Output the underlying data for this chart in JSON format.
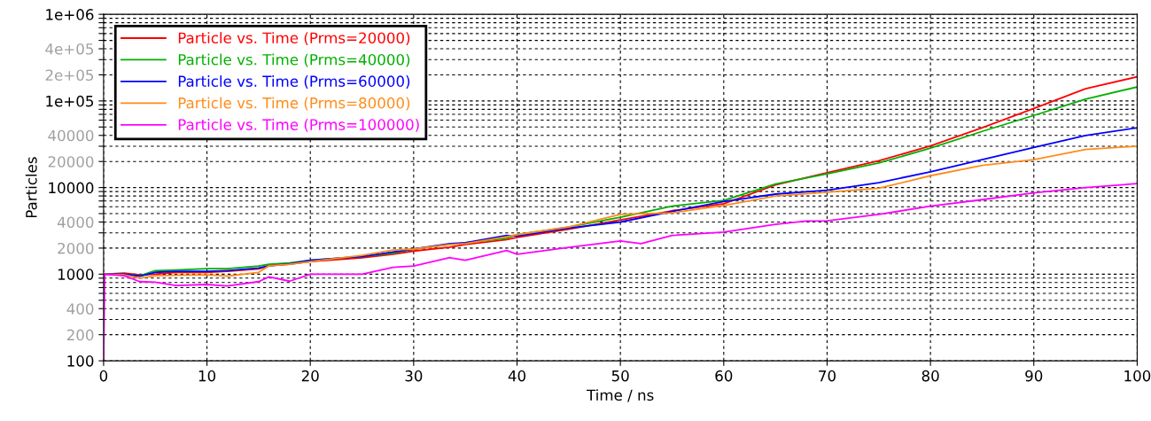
{
  "chart_data": {
    "type": "line",
    "xlabel": "Time / ns",
    "ylabel": "Particles",
    "log": "y",
    "grid": true,
    "legend": "top left",
    "line_style": "solid",
    "marker": "none",
    "xlim": [
      0,
      100
    ],
    "xticks": [
      0,
      10,
      20,
      30,
      40,
      50,
      60,
      70,
      80,
      90,
      100
    ],
    "ylim": [
      100,
      1000000
    ],
    "yticks": [
      100,
      200,
      {
        "value": 300,
        "label": null
      },
      400,
      {
        "value": 500,
        "label": null
      },
      {
        "value": 600,
        "label": null
      },
      {
        "value": 700,
        "label": null
      },
      {
        "value": 800,
        "label": null
      },
      {
        "value": 900,
        "label": null
      },
      1000,
      2000,
      {
        "value": 3000,
        "label": null
      },
      4000,
      {
        "value": 5000,
        "label": null
      },
      {
        "value": 6000,
        "label": null
      },
      {
        "value": 7000,
        "label": null
      },
      {
        "value": 8000,
        "label": null
      },
      {
        "value": 9000,
        "label": null
      },
      10000,
      20000,
      {
        "value": 30000,
        "label": null
      },
      40000,
      {
        "value": 50000,
        "label": null
      },
      {
        "value": 60000,
        "label": null
      },
      {
        "value": 70000,
        "label": null
      },
      {
        "value": 80000,
        "label": null
      },
      {
        "value": 90000,
        "label": null
      },
      {
        "value": 100000,
        "label": "1e+05"
      },
      {
        "value": 200000,
        "label": "2e+05"
      },
      {
        "value": 300000,
        "label": null
      },
      {
        "value": 400000,
        "label": "4e+05"
      },
      {
        "value": 500000,
        "label": null
      },
      {
        "value": 600000,
        "label": null
      },
      {
        "value": 700000,
        "label": null
      },
      {
        "value": 800000,
        "label": null
      },
      {
        "value": 900000,
        "label": null
      },
      {
        "value": 1000000,
        "label": "1e+06"
      }
    ],
    "x": [
      0,
      2,
      3.5,
      5,
      7,
      10,
      12,
      15,
      16,
      18,
      20,
      25,
      28,
      30,
      33.5,
      35,
      39,
      40,
      45,
      50,
      55,
      60,
      65,
      70,
      75,
      80,
      85,
      90,
      95,
      100
    ],
    "series": [
      {
        "name": "Particle vs. Time (Prms=20000)",
        "color": "#ff0000",
        "values": [
          1000,
          1030,
          980,
          1000,
          1050,
          1050,
          1080,
          1150,
          1250,
          1300,
          1400,
          1550,
          1700,
          1850,
          2050,
          2200,
          2500,
          2650,
          3300,
          4230,
          5400,
          6500,
          10700,
          14800,
          20400,
          30200,
          49000,
          82000,
          138000,
          190000
        ]
      },
      {
        "name": "Particle vs. Time (Prms=40000)",
        "color": "#00b000",
        "values": [
          1000,
          1000,
          960,
          1100,
          1120,
          1160,
          1160,
          1240,
          1300,
          1350,
          1450,
          1600,
          1750,
          1950,
          2200,
          2300,
          2600,
          2860,
          3500,
          4540,
          6100,
          7100,
          11000,
          14400,
          19200,
          28500,
          44500,
          68000,
          105000,
          145000
        ]
      },
      {
        "name": "Particle vs. Time (Prms=60000)",
        "color": "#0000ff",
        "values": [
          1000,
          1000,
          950,
          1050,
          1080,
          1080,
          1100,
          1180,
          1250,
          1320,
          1450,
          1600,
          1800,
          1950,
          2250,
          2300,
          2800,
          2750,
          3400,
          4000,
          5300,
          6900,
          8400,
          9300,
          11400,
          15200,
          21000,
          29000,
          40000,
          49000
        ]
      },
      {
        "name": "Particle vs. Time (Prms=80000)",
        "color": "#ff8c1a",
        "values": [
          1000,
          980,
          900,
          960,
          970,
          980,
          950,
          1050,
          1250,
          1300,
          1400,
          1650,
          1900,
          1950,
          2200,
          2250,
          2700,
          2860,
          3500,
          4900,
          5100,
          6200,
          8000,
          8850,
          9800,
          13700,
          18000,
          21000,
          27500,
          30000
        ]
      },
      {
        "name": "Particle vs. Time (Prms=100000)",
        "color": "#ff00ff",
        "x": [
          0,
          0.1,
          2,
          3.5,
          5,
          7,
          10,
          12,
          15,
          16,
          18,
          20,
          25,
          28,
          30,
          33.5,
          35,
          39,
          40,
          45,
          50,
          52,
          55,
          60,
          65,
          68,
          70,
          75,
          80,
          85,
          90,
          95,
          100
        ],
        "values": [
          100,
          1000,
          960,
          820,
          810,
          740,
          760,
          730,
          820,
          930,
          830,
          1000,
          1000,
          1200,
          1240,
          1550,
          1450,
          1880,
          1700,
          2040,
          2420,
          2250,
          2800,
          3060,
          3760,
          4100,
          4130,
          4900,
          6100,
          7250,
          8700,
          10000,
          11100
        ]
      }
    ]
  }
}
